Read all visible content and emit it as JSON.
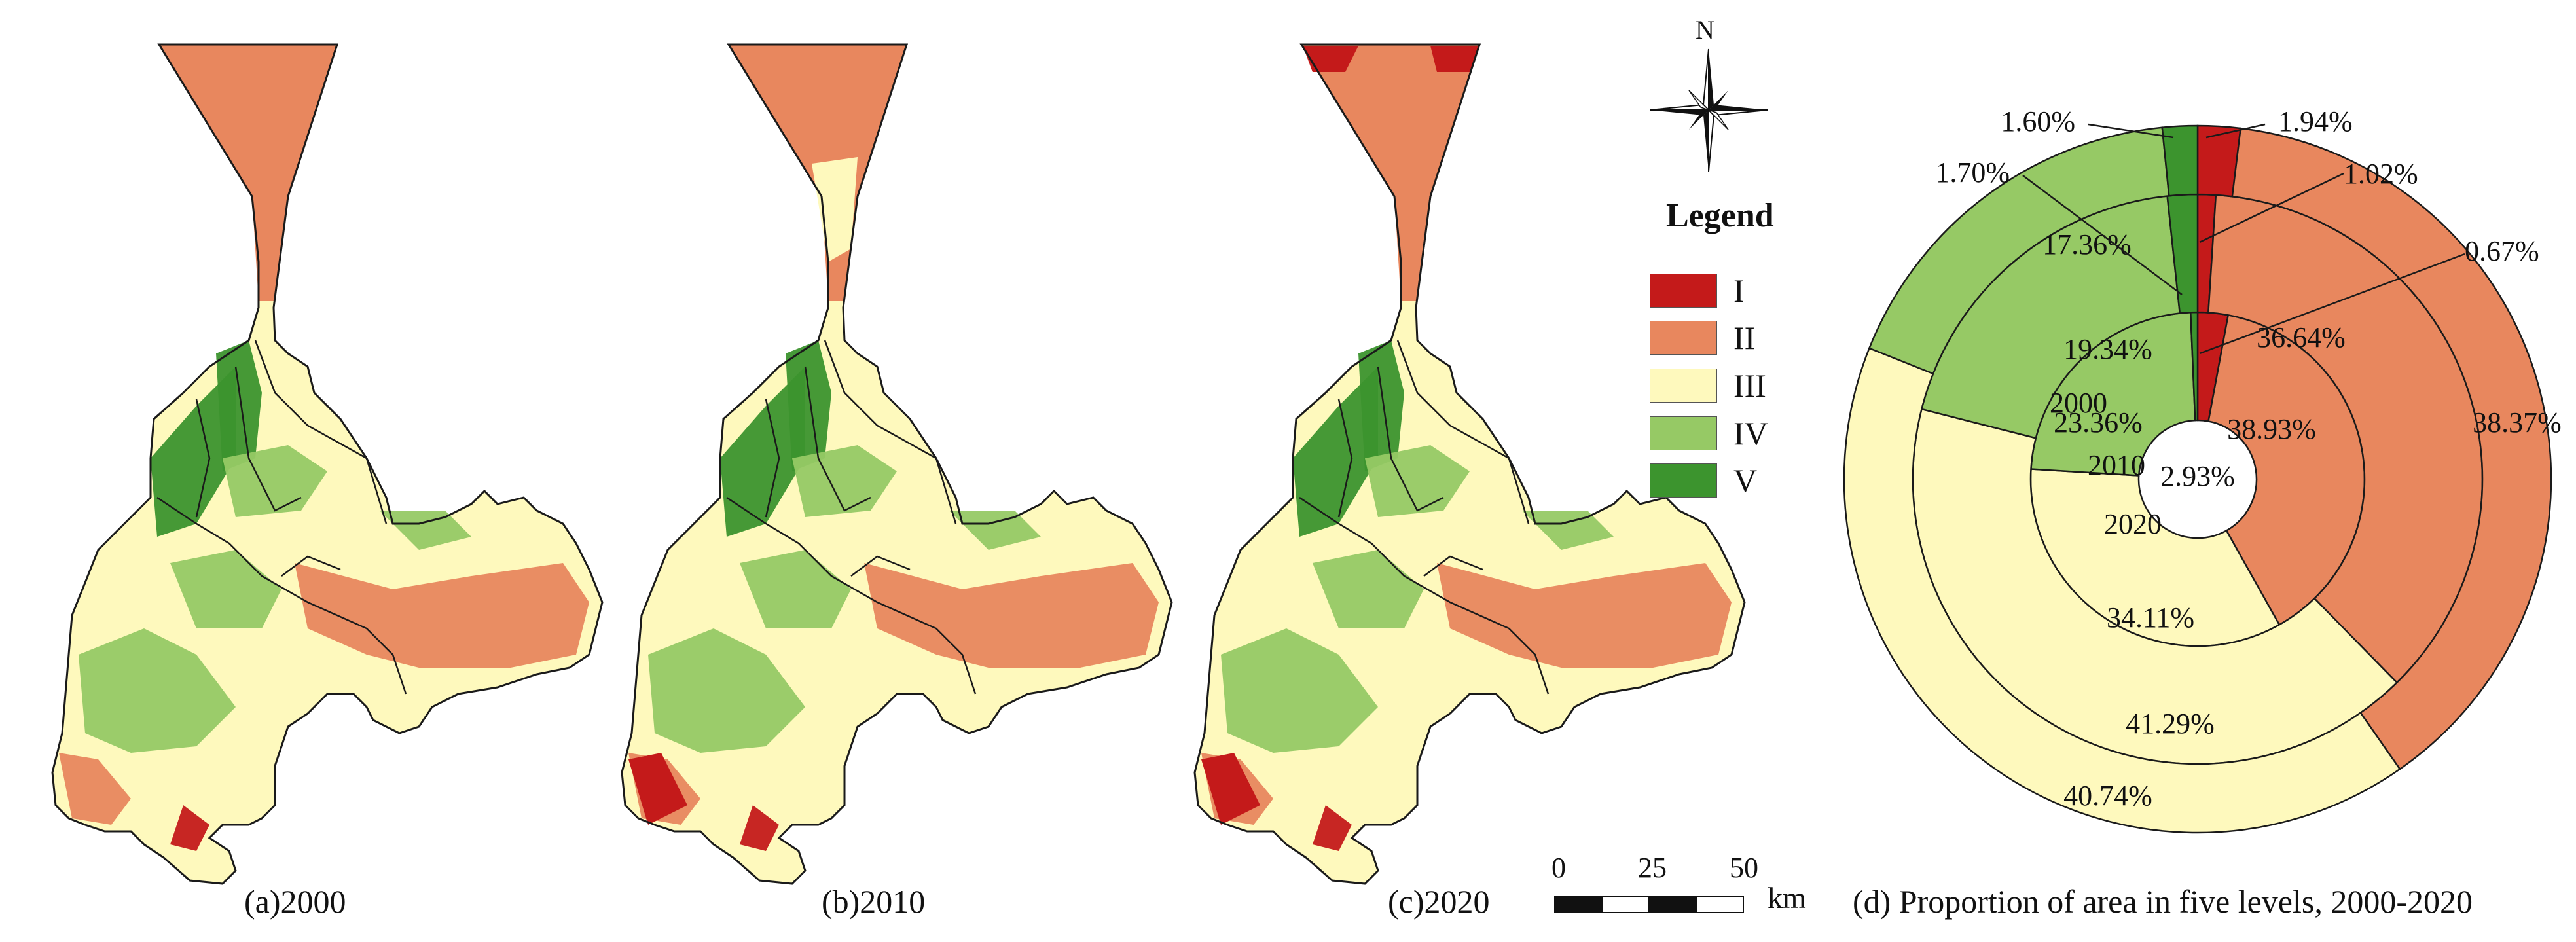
{
  "colors": {
    "I": "#c41a1a",
    "II": "#e8875e",
    "III": "#fef9bd",
    "IV": "#96c965",
    "V": "#3c942e",
    "outline": "#1a1a1a"
  },
  "maps": [
    {
      "id": "a",
      "caption": "(a)2000"
    },
    {
      "id": "b",
      "caption": "(b)2010"
    },
    {
      "id": "c",
      "caption": "(c)2020"
    }
  ],
  "north_arrow": {
    "label": "N",
    "icon": "north-arrow-icon"
  },
  "legend": {
    "title": "Legend",
    "items": [
      {
        "label": "I",
        "color": "#c41a1a"
      },
      {
        "label": "II",
        "color": "#e8875e"
      },
      {
        "label": "III",
        "color": "#fef9bd"
      },
      {
        "label": "IV",
        "color": "#96c965"
      },
      {
        "label": "V",
        "color": "#3c942e"
      }
    ]
  },
  "scale_bar": {
    "ticks": [
      "0",
      "25",
      "50"
    ],
    "unit": "km"
  },
  "chart_data": {
    "type": "pie",
    "subtype": "multi-ring donut",
    "title": "(d) Proportion of area in five levels, 2000-2020",
    "categories": [
      "I",
      "II",
      "III",
      "IV",
      "V"
    ],
    "rings": [
      {
        "year": "2020",
        "label": "2020",
        "values": [
          2.93,
          38.93,
          34.11,
          23.36,
          0.67
        ],
        "labels": [
          "2.93%",
          "38.93%",
          "34.11%",
          "23.36%",
          ""
        ]
      },
      {
        "year": "2010",
        "label": "2010",
        "values": [
          1.02,
          36.64,
          41.29,
          19.34,
          1.7
        ],
        "labels": [
          "",
          "36.64%",
          "41.29%",
          "19.34%",
          ""
        ]
      },
      {
        "year": "2000",
        "label": "2000",
        "values": [
          1.94,
          38.37,
          40.74,
          17.36,
          1.6
        ],
        "labels": [
          "",
          "38.37%",
          "40.74%",
          "17.36%",
          ""
        ]
      }
    ],
    "callouts": [
      "1.94%",
      "1.02%",
      "0.67%",
      "1.60%",
      "1.70%"
    ]
  }
}
